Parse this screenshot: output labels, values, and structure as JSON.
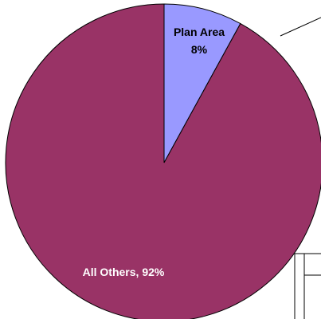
{
  "chart_data": {
    "type": "pie",
    "slices": [
      {
        "name": "Plan Area",
        "value": 8,
        "label_line1": "Plan Area",
        "label_line2": "8%",
        "color": "#9999ff"
      },
      {
        "name": "All Others",
        "value": 92,
        "label_line1": "All Others, 92%",
        "color": "#993366"
      }
    ],
    "start_angle_deg": 0,
    "direction": "clockwise",
    "outline_color": "#000000"
  }
}
